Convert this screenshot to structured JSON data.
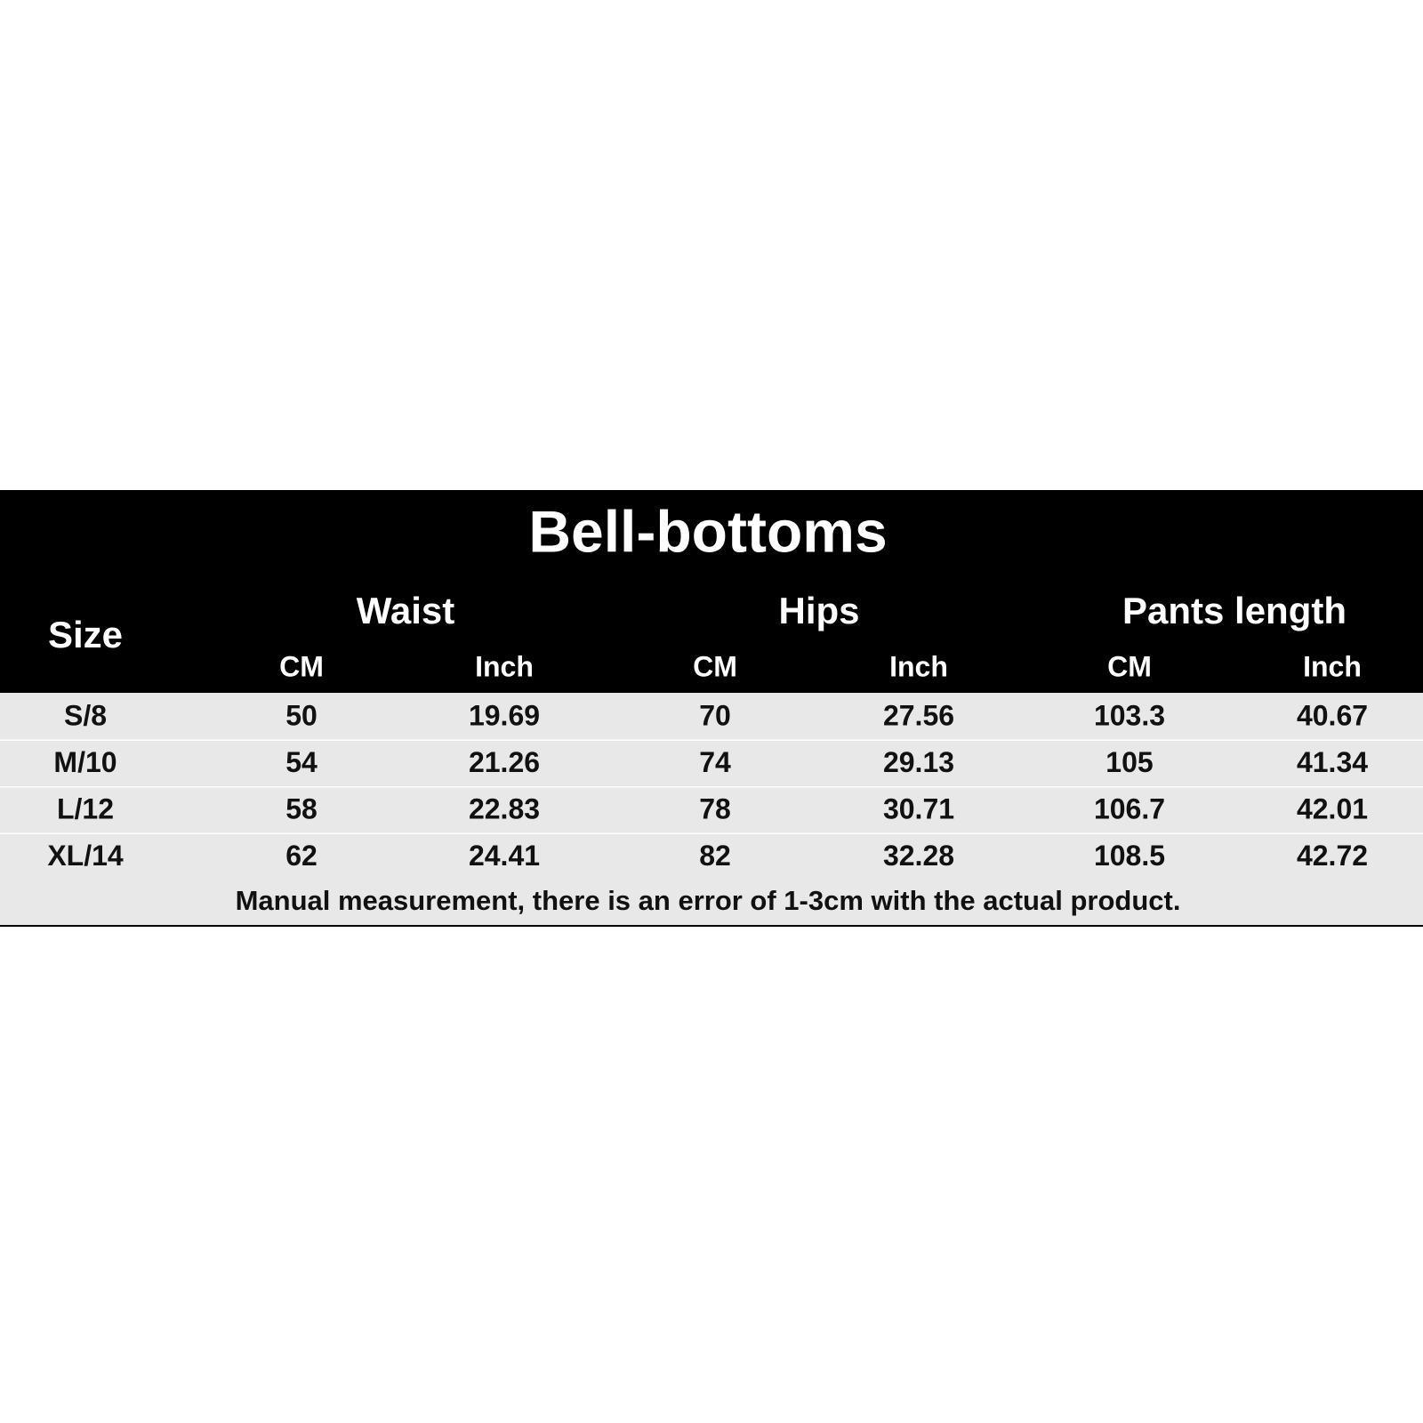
{
  "title": "Bell-bottoms",
  "table": {
    "size_header": "Size",
    "groups": [
      "Waist",
      "Hips",
      "Pants length"
    ],
    "units": [
      "CM",
      "Inch",
      "CM",
      "Inch",
      "CM",
      "Inch"
    ],
    "rows": [
      [
        "S/8",
        50,
        19.69,
        70,
        27.56,
        103.3,
        40.67
      ],
      [
        "M/10",
        54,
        21.26,
        74,
        29.13,
        105,
        41.34
      ],
      [
        "L/12",
        58,
        22.83,
        78,
        30.71,
        106.7,
        42.01
      ],
      [
        "XL/14",
        62,
        24.41,
        82,
        32.28,
        108.5,
        42.72
      ]
    ]
  },
  "note": "Manual measurement, there is an error of 1-3cm with the actual product."
}
